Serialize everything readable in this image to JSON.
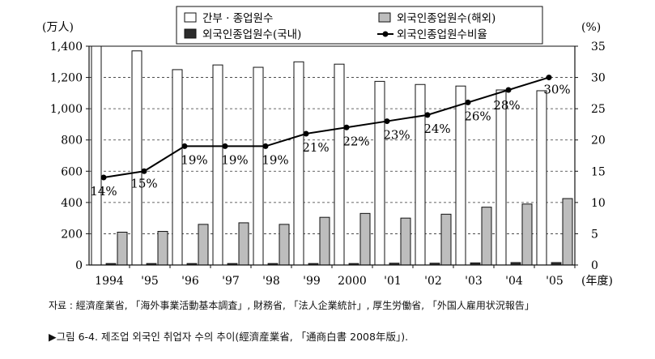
{
  "chart_data": {
    "type": "bar",
    "categories": [
      "1994",
      "'95",
      "'96",
      "'97",
      "'98",
      "'99",
      "2000",
      "'01",
      "'02",
      "'03",
      "'04",
      "'05"
    ],
    "series": [
      {
        "name": "간부 · 종업원수",
        "axis": "left",
        "values": [
          1400,
          1370,
          1250,
          1280,
          1265,
          1300,
          1285,
          1175,
          1155,
          1145,
          1120,
          1115
        ],
        "color": "#ffffff"
      },
      {
        "name": "외국인종업원수(국내)",
        "axis": "left",
        "values": [
          10,
          10,
          10,
          10,
          10,
          10,
          10,
          12,
          12,
          14,
          16,
          16
        ],
        "color": "#2b2b2b"
      },
      {
        "name": "외국인종업원수(해외)",
        "axis": "left",
        "values": [
          210,
          215,
          260,
          270,
          260,
          305,
          330,
          300,
          325,
          370,
          390,
          425
        ],
        "color": "#bdbdbd"
      },
      {
        "name": "외국인종업원수비율",
        "axis": "right",
        "type": "line",
        "values": [
          14,
          15,
          19,
          19,
          19,
          21,
          22,
          23,
          24,
          26,
          28,
          30
        ],
        "color": "#000000"
      }
    ],
    "data_labels": [
      "14%",
      "15%",
      "19%",
      "19%",
      "19%",
      "21%",
      "22%",
      "23%",
      "24%",
      "26%",
      "28%",
      "30%"
    ],
    "ylim_left": [
      0,
      1400
    ],
    "ylim_right": [
      0,
      35
    ],
    "yticks_left": [
      "0",
      "200",
      "400",
      "600",
      "800",
      "1,000",
      "1,200",
      "1,400"
    ],
    "yticks_right": [
      "0",
      "5",
      "10",
      "15",
      "20",
      "25",
      "30",
      "35"
    ],
    "ylabel_left": "(万人)",
    "ylabel_right": "(%)",
    "xlabel": "(年度)",
    "grid": "horizontal dashed",
    "legend_position": "top"
  },
  "source_text": "자료 : 經濟産業省, 「海外事業活動基本調査」, 財務省, 「法人企業統計」, 厚生労働省, 「外国人雇用状況報告」",
  "caption_text": "▶그림 6-4. 제조업 외국인 취업자 수의 추이(經濟産業省, 「通商白書 2008年版」)."
}
